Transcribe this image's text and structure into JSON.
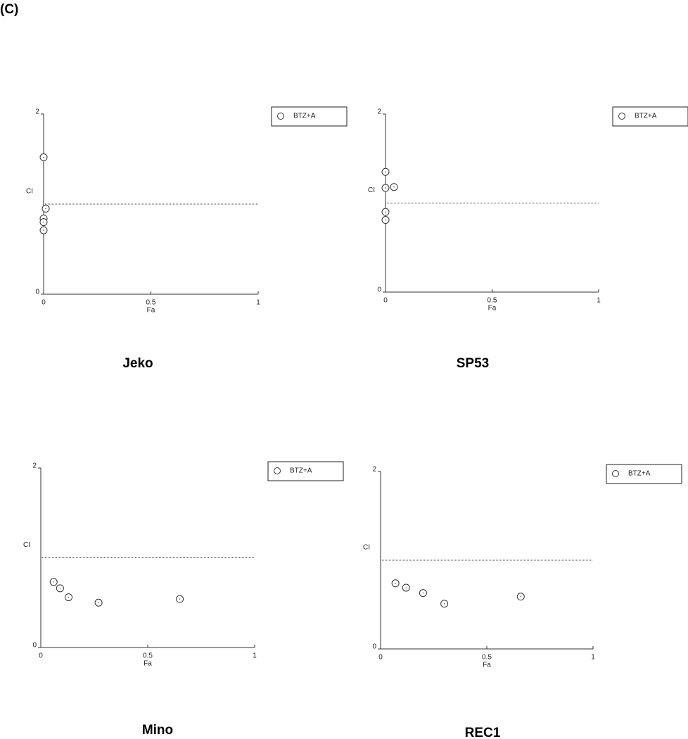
{
  "panel_label": "(C)",
  "chart_data": [
    {
      "type": "scatter",
      "title": "Jeko",
      "x_label": "Fa",
      "y_label": "CI",
      "xlim": [
        0,
        1
      ],
      "ylim": [
        0,
        2
      ],
      "xticks": [
        0,
        0.5,
        1
      ],
      "yticks": [
        0,
        2
      ],
      "reference_line": 1,
      "legend": "right",
      "x": [
        0,
        0.01,
        0,
        0,
        0
      ],
      "series": [
        {
          "name": "BTZ+A",
          "color": "#333333",
          "values": [
            1.52,
            0.95,
            0.84,
            0.8,
            0.71
          ]
        }
      ]
    },
    {
      "type": "scatter",
      "title": "SP53",
      "x_label": "Fa",
      "y_label": "CI",
      "xlim": [
        0,
        1
      ],
      "ylim": [
        0,
        2
      ],
      "xticks": [
        0,
        0.5,
        1
      ],
      "yticks": [
        0,
        2
      ],
      "reference_line": 1,
      "legend": "right",
      "x": [
        0,
        0,
        0.04,
        0,
        0
      ],
      "series": [
        {
          "name": "BTZ+A",
          "color": "#333333",
          "values": [
            1.35,
            1.17,
            1.18,
            0.9,
            0.81
          ]
        }
      ]
    },
    {
      "type": "scatter",
      "title": "Mino",
      "x_label": "Fa",
      "y_label": "CI",
      "xlim": [
        0,
        1
      ],
      "ylim": [
        0,
        2
      ],
      "xticks": [
        0,
        0.5,
        1
      ],
      "yticks": [
        0,
        2
      ],
      "reference_line": 1,
      "legend": "right",
      "x": [
        0.06,
        0.09,
        0.13,
        0.27,
        0.65
      ],
      "series": [
        {
          "name": "BTZ+A",
          "color": "#333333",
          "values": [
            0.73,
            0.66,
            0.56,
            0.5,
            0.54
          ]
        }
      ]
    },
    {
      "type": "scatter",
      "title": "REC1",
      "x_label": "Fa",
      "y_label": "CI",
      "xlim": [
        0,
        1
      ],
      "ylim": [
        0,
        2
      ],
      "xticks": [
        0,
        0.5,
        1
      ],
      "yticks": [
        0,
        2
      ],
      "reference_line": 1,
      "legend": "right",
      "x": [
        0.07,
        0.12,
        0.2,
        0.3,
        0.66
      ],
      "series": [
        {
          "name": "BTZ+A",
          "color": "#333333",
          "values": [
            0.74,
            0.69,
            0.63,
            0.51,
            0.59
          ]
        }
      ]
    }
  ]
}
